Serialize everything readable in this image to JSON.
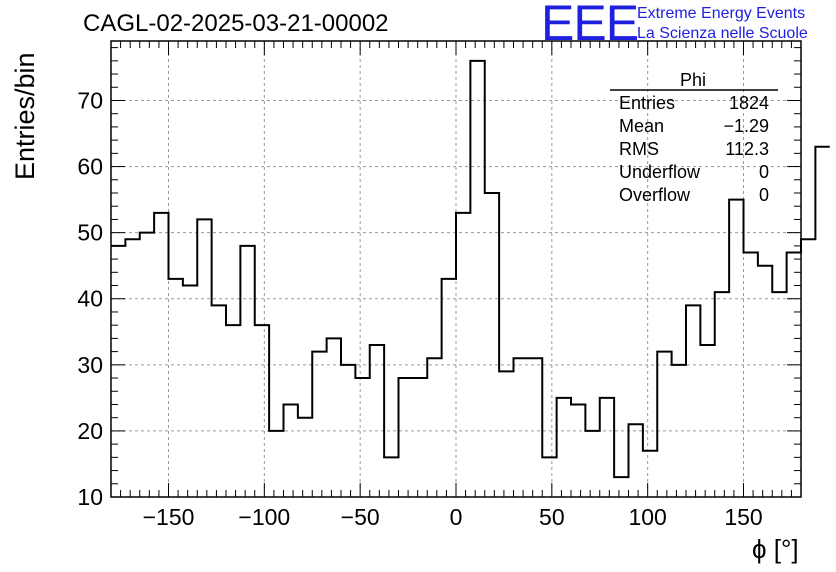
{
  "title": "CAGL-02-2025-03-21-00002",
  "logo": {
    "mark": "EEE",
    "line1": "Extreme Energy Events",
    "line2": "La Scienza nelle Scuole",
    "color": "#1f1fe0"
  },
  "stats": {
    "name": "Phi",
    "rows": [
      {
        "label": "Entries",
        "value": "1824"
      },
      {
        "label": "Mean",
        "value": "−1.29"
      },
      {
        "label": "RMS",
        "value": "112.3"
      },
      {
        "label": "Underflow",
        "value": "0"
      },
      {
        "label": "Overflow",
        "value": "0"
      }
    ]
  },
  "chart_data": {
    "type": "histogram",
    "title": "CAGL-02-2025-03-21-00002",
    "xlabel": "ϕ [°]",
    "ylabel": "Entries/bin",
    "xlim": [
      -180,
      180
    ],
    "ylim": [
      10,
      79
    ],
    "bin_width": 7.5,
    "bin_start": -180,
    "values": [
      48,
      49,
      50,
      53,
      43,
      42,
      52,
      39,
      36,
      48,
      36,
      20,
      24,
      22,
      32,
      34,
      30,
      28,
      33,
      16,
      28,
      28,
      31,
      43,
      53,
      76,
      56,
      29,
      31,
      31,
      16,
      25,
      24,
      20,
      25,
      13,
      21,
      17,
      32,
      30,
      39,
      33,
      41,
      55,
      47,
      45,
      41,
      47,
      49,
      63
    ],
    "x_ticks": [
      -150,
      -100,
      -50,
      0,
      50,
      100,
      150
    ],
    "x_tick_labels": [
      "−150",
      "−100",
      "−50",
      "0",
      "50",
      "100",
      "150"
    ],
    "y_ticks": [
      10,
      20,
      30,
      40,
      50,
      60,
      70
    ],
    "y_tick_labels": [
      "10",
      "20",
      "30",
      "40",
      "50",
      "60",
      "70"
    ],
    "grid": true,
    "line_color": "#000000"
  }
}
